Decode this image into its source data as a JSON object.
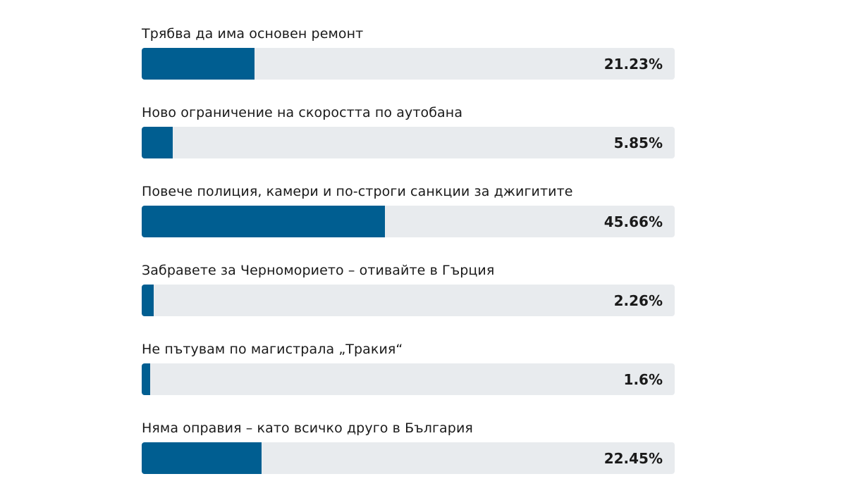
{
  "colors": {
    "bar_fill": "#005e91",
    "bar_track": "#e8ebee"
  },
  "chart_data": {
    "type": "bar",
    "orientation": "horizontal",
    "categories": [
      "Трябва да има основен ремонт",
      "Ново ограничение на скоростта по аутобана",
      "Повече полиция, камери и по-строги санкции за джигитите",
      "Забравете за Черноморието – отивайте в Гърция",
      "Не пътувам по магистрала „Тракия“",
      "Няма оправия – като всичко друго в България"
    ],
    "values": [
      21.23,
      5.85,
      45.66,
      2.26,
      1.6,
      22.45
    ],
    "value_labels": [
      "21.23%",
      "5.85%",
      "45.66%",
      "2.26%",
      "1.6%",
      "22.45%"
    ],
    "xlim": [
      0,
      100
    ],
    "title": "",
    "xlabel": "",
    "ylabel": "",
    "grid": false,
    "legend": "none"
  }
}
